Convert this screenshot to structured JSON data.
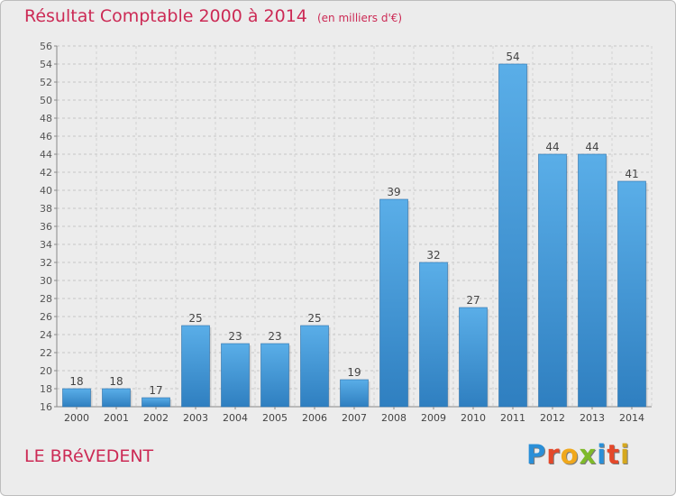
{
  "header": {
    "title": "Résultat Comptable 2000 à 2014",
    "unit": "(en milliers d'€)"
  },
  "place_name": "LE BRéVEDENT",
  "logo": {
    "text": "Proxiti",
    "colors": [
      "#2a8fd8",
      "#e4482a",
      "#f0a81c",
      "#7fba2a",
      "#2a8fd8",
      "#e4482a",
      "#d6a81e"
    ]
  },
  "chart_data": {
    "type": "bar",
    "title": "Résultat Comptable 2000 à 2014",
    "subtitle": "(en milliers d'€)",
    "categories": [
      "2000",
      "2001",
      "2002",
      "2003",
      "2004",
      "2005",
      "2006",
      "2007",
      "2008",
      "2009",
      "2010",
      "2011",
      "2012",
      "2013",
      "2014"
    ],
    "values": [
      18,
      18,
      17,
      25,
      23,
      23,
      25,
      19,
      39,
      32,
      27,
      54,
      44,
      44,
      41
    ],
    "ylim": [
      16,
      56
    ],
    "yticks": [
      16,
      18,
      20,
      22,
      24,
      26,
      28,
      30,
      32,
      34,
      36,
      38,
      40,
      42,
      44,
      46,
      48,
      50,
      52,
      54,
      56
    ],
    "grid": true,
    "data_labels": true,
    "bar_color": "#4ea3e0",
    "xlabel": "",
    "ylabel": ""
  }
}
